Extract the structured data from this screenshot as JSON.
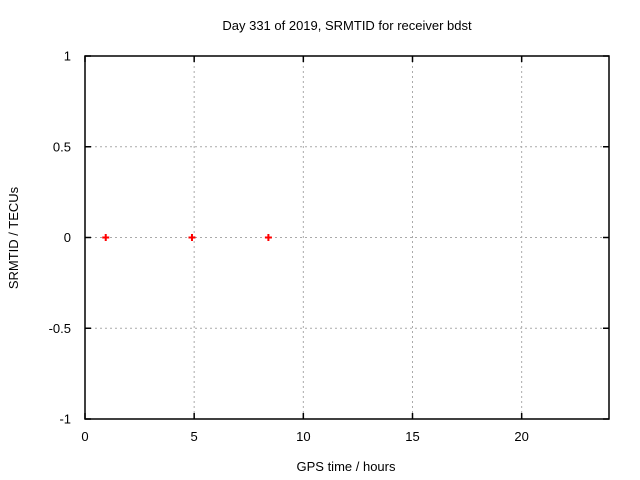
{
  "chart_data": {
    "type": "scatter",
    "title": "Day 331 of 2019, SRMTID for receiver bdst",
    "xlabel": "GPS time / hours",
    "ylabel": "SRMTID / TECUs",
    "xlim": [
      0,
      24
    ],
    "ylim": [
      -1,
      1
    ],
    "xticks": [
      0,
      5,
      10,
      15,
      20
    ],
    "yticks": [
      1,
      0.5,
      0,
      -0.5,
      -1
    ],
    "grid": true,
    "legend": "none",
    "marker": {
      "style": "plus",
      "color": "#ff0000",
      "size": 7,
      "stroke_width": 2
    },
    "series": [
      {
        "name": "points",
        "x": [
          0.95,
          4.9,
          8.4
        ],
        "y": [
          0,
          0,
          0
        ]
      }
    ]
  },
  "colors": {
    "background": "#ffffff",
    "axis": "#000000",
    "grid": "#aaaaaa",
    "marker": "#ff0000",
    "text": "#000000"
  }
}
